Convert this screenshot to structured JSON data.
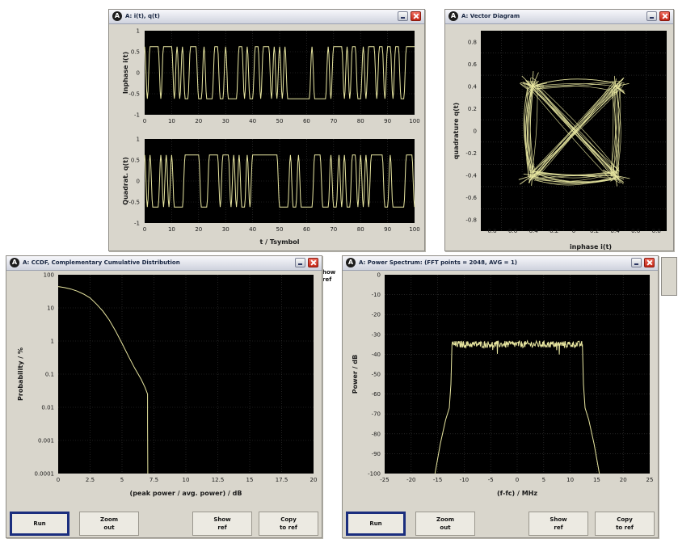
{
  "windows": {
    "iq": {
      "title": "A: i(t), q(t)",
      "badge": "A"
    },
    "vector": {
      "title": "A: Vector Diagram",
      "badge": "A"
    },
    "ccdf": {
      "title": "A: CCDF, Complementary Cumulative Distribution",
      "badge": "A"
    },
    "spectrum": {
      "title": "A: Power Spectrum: (FFT points = 2048, AVG = 1)",
      "badge": "A"
    }
  },
  "buttons": {
    "run": "Run",
    "zoom_out": "Zoom\nout",
    "show_ref": "Show\nref",
    "copy_to_ref": "Copy\nto ref"
  },
  "peek_labels": {
    "show_ref": "how\nref"
  },
  "colors": {
    "window_bg": "#d9d6cc",
    "plot_bg": "#000000",
    "trace": "#e8e6a0",
    "grid": "#3a3a3a",
    "focus": "#1b2e7e"
  },
  "chart_data": [
    {
      "type": "line",
      "name": "inphase",
      "ylabel": "Inphase i(t)",
      "xlabel": "",
      "xlim": [
        0,
        100
      ],
      "ylim": [
        -1,
        1
      ],
      "x_ticks": [
        "0",
        "10",
        "20",
        "30",
        "40",
        "50",
        "60",
        "70",
        "80",
        "90",
        "100"
      ],
      "y_ticks": [
        "-1",
        "-0.5",
        "0",
        "0.5",
        "1"
      ],
      "grid": true
    },
    {
      "type": "line",
      "name": "quadrature",
      "ylabel": "Quadrat. q(t)",
      "xlabel": "t / Tsymbol",
      "xlim": [
        0,
        100
      ],
      "ylim": [
        -1,
        1
      ],
      "x_ticks": [
        "0",
        "10",
        "20",
        "30",
        "40",
        "50",
        "60",
        "70",
        "80",
        "90",
        "100"
      ],
      "y_ticks": [
        "-1",
        "-0.5",
        "0",
        "0.5",
        "1"
      ],
      "grid": true
    },
    {
      "type": "scatter",
      "name": "vector",
      "xlabel": "inphase i(t)",
      "ylabel": "quadrature q(t)",
      "xlim": [
        -0.9,
        0.9
      ],
      "ylim": [
        -0.9,
        0.9
      ],
      "x_ticks": [
        "-0.8",
        "-0.6",
        "-0.4",
        "-0.2",
        "0",
        "0.2",
        "0.4",
        "0.6",
        "0.8"
      ],
      "y_ticks": [
        "0.8",
        "0.6",
        "0.4",
        "0.2",
        "0",
        "-0.2",
        "-0.4",
        "-0.6",
        "-0.8"
      ],
      "constellation": [
        [
          0.4,
          0.4
        ],
        [
          -0.4,
          0.4
        ],
        [
          -0.4,
          -0.4
        ],
        [
          0.4,
          -0.4
        ]
      ],
      "grid": true
    },
    {
      "type": "line",
      "name": "ccdf",
      "xlabel": "(peak power / avg. power) / dB",
      "ylabel": "Probability / %",
      "xlim": [
        0,
        20
      ],
      "ylim": [
        0.0001,
        100
      ],
      "yscale": "log",
      "x_ticks": [
        "0",
        "2.5",
        "5",
        "7.5",
        "10",
        "12.5",
        "15",
        "17.5",
        "20"
      ],
      "y_ticks": [
        "100",
        "10",
        "1",
        "0.1",
        "0.01",
        "0.001",
        "0.0001"
      ],
      "x": [
        0,
        0.5,
        1,
        1.5,
        2,
        2.5,
        3,
        3.5,
        4,
        4.5,
        5,
        5.5,
        6,
        6.5,
        6.8,
        7.0,
        7.0,
        7.02
      ],
      "y": [
        44,
        41,
        37,
        32,
        26,
        20,
        13,
        8,
        4.3,
        2,
        0.85,
        0.35,
        0.15,
        0.07,
        0.04,
        0.025,
        0.003,
        0.0001
      ],
      "grid": true
    },
    {
      "type": "line",
      "name": "spectrum",
      "xlabel": "(f-fc) / MHz",
      "ylabel": "Power / dB",
      "xlim": [
        -25,
        25
      ],
      "ylim": [
        -100,
        0
      ],
      "x_ticks": [
        "-25",
        "-20",
        "-15",
        "-10",
        "-5",
        "0",
        "5",
        "10",
        "15",
        "20",
        "25"
      ],
      "y_ticks": [
        "0",
        "-10",
        "-20",
        "-30",
        "-40",
        "-50",
        "-60",
        "-70",
        "-80",
        "-90",
        "-100"
      ],
      "x": [
        -15.5,
        -14.5,
        -13.5,
        -12.8,
        -12.5,
        -12.3,
        12.3,
        12.5,
        12.8,
        13.5,
        14.5,
        15.5
      ],
      "y": [
        -100,
        -85,
        -73,
        -67,
        -55,
        -35,
        -35,
        -55,
        -67,
        -73,
        -85,
        -100
      ],
      "passband_level": -35,
      "grid": true
    }
  ]
}
